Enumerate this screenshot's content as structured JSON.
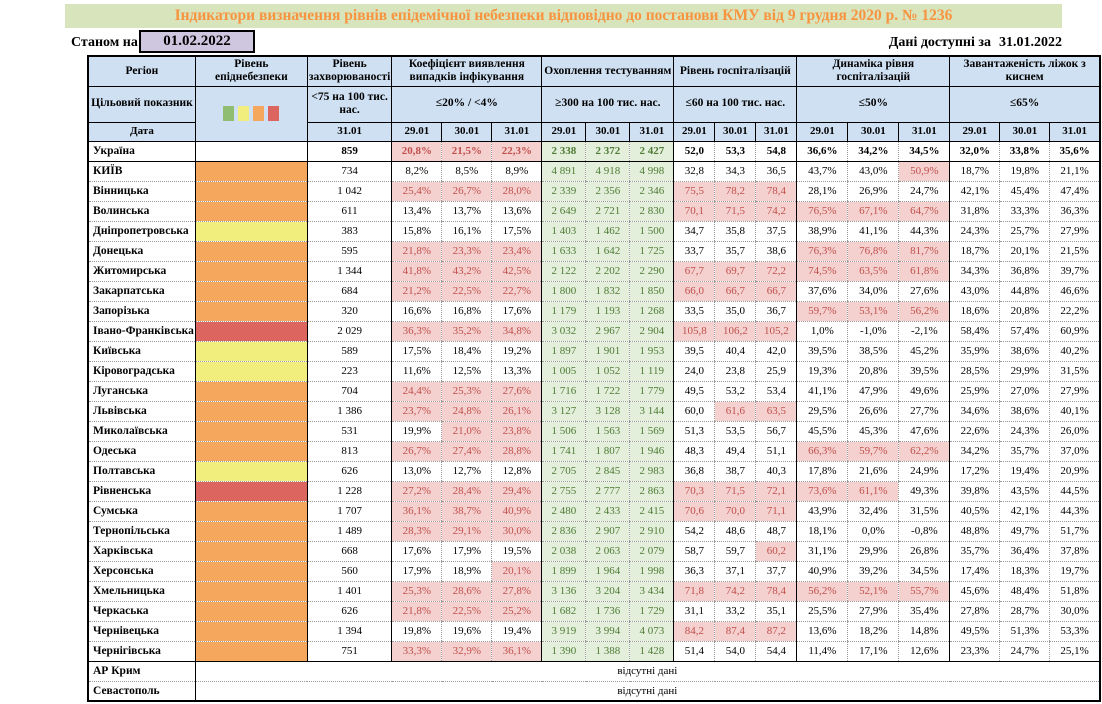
{
  "title": "Індикатори визначення рівнів епідемічної небезпеки відповідно до постанови КМУ від 9 грудня 2020 р. № 1236",
  "as_of_label": "Станом на",
  "as_of_date": "01.02.2022",
  "available_label": "Дані доступні за",
  "available_date": "31.01.2022",
  "no_data_text": "відсутні дані",
  "columns": {
    "region": "Регіон",
    "level": "Рівень епіднебезпеки",
    "incidence": "Рівень захворюваності",
    "coef": "Коефіцієнт виявлення випадків інфікування",
    "testing": "Охоплення тестуванням",
    "hosp": "Рівень госпіталізацій",
    "dynamics": "Динаміка рівня госпіталізацій",
    "beds": "Завантаженість ліжок з киснем"
  },
  "target_label": "Цільовий показник",
  "date_label": "Дата",
  "targets": {
    "incidence": "<75 на 100 тис. нас.",
    "coef": "≤20% / <4%",
    "testing": "≥300 на 100 тис. нас.",
    "hosp": "≤60 на 100 тис. нас.",
    "dynamics": "≤50%",
    "beds": "≤65%"
  },
  "dates": {
    "incidence": "31.01",
    "triple": [
      "29.01",
      "30.01",
      "31.01"
    ]
  },
  "legend_colors": [
    "#8fbe73",
    "#f2ee7e",
    "#f4a75d",
    "#dd6560"
  ],
  "colors": {
    "title_bg": "#d8e4bc",
    "title_text": "#f79440",
    "header_bg": "#cfe0f2",
    "date_box_bg": "#cfc6df",
    "red_bg": "#f4d0ce",
    "red_text": "#c0504d",
    "green_bg": "#e3efda",
    "green_text": "#4e7b35",
    "level_orange": "#f4a75d",
    "level_yellow": "#f2ee7e",
    "level_red": "#dd6560"
  },
  "rows": [
    {
      "name": "Україна",
      "bold": true,
      "solid_bottom": true,
      "level": "none",
      "incidence": "859",
      "coef": [
        "20,8%",
        "21,5%",
        "22,3%"
      ],
      "coef_red": [
        1,
        1,
        1
      ],
      "testing": [
        "2 338",
        "2 372",
        "2 427"
      ],
      "hosp": [
        "52,0",
        "53,3",
        "54,8"
      ],
      "hosp_red": [
        0,
        0,
        0
      ],
      "dyn": [
        "36,6%",
        "34,2%",
        "34,5%"
      ],
      "dyn_red": [
        0,
        0,
        0
      ],
      "beds": [
        "32,0%",
        "33,8%",
        "35,6%"
      ]
    },
    {
      "name": "КИЇВ",
      "level": "orange",
      "incidence": "734",
      "coef": [
        "8,2%",
        "8,5%",
        "8,9%"
      ],
      "coef_red": [
        0,
        0,
        0
      ],
      "testing": [
        "4 891",
        "4 918",
        "4 998"
      ],
      "hosp": [
        "32,8",
        "34,3",
        "36,5"
      ],
      "hosp_red": [
        0,
        0,
        0
      ],
      "dyn": [
        "43,7%",
        "43,0%",
        "50,9%"
      ],
      "dyn_red": [
        0,
        0,
        1
      ],
      "beds": [
        "18,7%",
        "19,8%",
        "21,1%"
      ]
    },
    {
      "name": "Вінницька",
      "level": "orange",
      "incidence": "1 042",
      "coef": [
        "25,4%",
        "26,7%",
        "28,0%"
      ],
      "coef_red": [
        1,
        1,
        1
      ],
      "testing": [
        "2 339",
        "2 356",
        "2 346"
      ],
      "hosp": [
        "75,5",
        "78,2",
        "78,4"
      ],
      "hosp_red": [
        1,
        1,
        1
      ],
      "dyn": [
        "28,1%",
        "26,9%",
        "24,7%"
      ],
      "dyn_red": [
        0,
        0,
        0
      ],
      "beds": [
        "42,1%",
        "45,4%",
        "47,4%"
      ]
    },
    {
      "name": "Волинська",
      "level": "orange",
      "incidence": "611",
      "coef": [
        "13,4%",
        "13,7%",
        "13,6%"
      ],
      "coef_red": [
        0,
        0,
        0
      ],
      "testing": [
        "2 649",
        "2 721",
        "2 830"
      ],
      "hosp": [
        "70,1",
        "71,5",
        "74,2"
      ],
      "hosp_red": [
        1,
        1,
        1
      ],
      "dyn": [
        "76,5%",
        "67,1%",
        "64,7%"
      ],
      "dyn_red": [
        1,
        1,
        1
      ],
      "beds": [
        "31,8%",
        "33,3%",
        "36,3%"
      ]
    },
    {
      "name": "Дніпропетровська",
      "level": "yellow",
      "incidence": "383",
      "coef": [
        "15,8%",
        "16,1%",
        "17,5%"
      ],
      "coef_red": [
        0,
        0,
        0
      ],
      "testing": [
        "1 403",
        "1 462",
        "1 500"
      ],
      "hosp": [
        "34,7",
        "35,8",
        "37,5"
      ],
      "hosp_red": [
        0,
        0,
        0
      ],
      "dyn": [
        "38,9%",
        "41,1%",
        "44,3%"
      ],
      "dyn_red": [
        0,
        0,
        0
      ],
      "beds": [
        "24,3%",
        "25,7%",
        "27,9%"
      ]
    },
    {
      "name": "Донецька",
      "level": "orange",
      "incidence": "595",
      "coef": [
        "21,8%",
        "23,3%",
        "23,4%"
      ],
      "coef_red": [
        1,
        1,
        1
      ],
      "testing": [
        "1 633",
        "1 642",
        "1 725"
      ],
      "hosp": [
        "33,7",
        "35,7",
        "38,6"
      ],
      "hosp_red": [
        0,
        0,
        0
      ],
      "dyn": [
        "76,3%",
        "76,8%",
        "81,7%"
      ],
      "dyn_red": [
        1,
        1,
        1
      ],
      "beds": [
        "18,7%",
        "20,1%",
        "21,5%"
      ]
    },
    {
      "name": "Житомирська",
      "level": "orange",
      "incidence": "1 344",
      "coef": [
        "41,8%",
        "43,2%",
        "42,5%"
      ],
      "coef_red": [
        1,
        1,
        1
      ],
      "testing": [
        "2 122",
        "2 202",
        "2 290"
      ],
      "hosp": [
        "67,7",
        "69,7",
        "72,2"
      ],
      "hosp_red": [
        1,
        1,
        1
      ],
      "dyn": [
        "74,5%",
        "63,5%",
        "61,8%"
      ],
      "dyn_red": [
        1,
        1,
        1
      ],
      "beds": [
        "34,3%",
        "36,8%",
        "39,7%"
      ]
    },
    {
      "name": "Закарпатська",
      "level": "orange",
      "incidence": "684",
      "coef": [
        "21,2%",
        "22,5%",
        "22,7%"
      ],
      "coef_red": [
        1,
        1,
        1
      ],
      "testing": [
        "1 800",
        "1 832",
        "1 850"
      ],
      "hosp": [
        "66,0",
        "66,7",
        "66,7"
      ],
      "hosp_red": [
        1,
        1,
        1
      ],
      "dyn": [
        "37,6%",
        "34,0%",
        "27,6%"
      ],
      "dyn_red": [
        0,
        0,
        0
      ],
      "beds": [
        "43,0%",
        "44,8%",
        "46,6%"
      ]
    },
    {
      "name": "Запорізька",
      "level": "orange",
      "incidence": "320",
      "coef": [
        "16,6%",
        "16,8%",
        "17,6%"
      ],
      "coef_red": [
        0,
        0,
        0
      ],
      "testing": [
        "1 179",
        "1 193",
        "1 268"
      ],
      "hosp": [
        "33,5",
        "35,0",
        "36,7"
      ],
      "hosp_red": [
        0,
        0,
        0
      ],
      "dyn": [
        "59,7%",
        "53,1%",
        "56,2%"
      ],
      "dyn_red": [
        1,
        1,
        1
      ],
      "beds": [
        "18,6%",
        "20,8%",
        "22,2%"
      ]
    },
    {
      "name": "Івано-Франківська",
      "level": "red",
      "incidence": "2 029",
      "coef": [
        "36,3%",
        "35,2%",
        "34,8%"
      ],
      "coef_red": [
        1,
        1,
        1
      ],
      "testing": [
        "3 032",
        "2 967",
        "2 904"
      ],
      "hosp": [
        "105,8",
        "106,2",
        "105,2"
      ],
      "hosp_red": [
        1,
        1,
        1
      ],
      "dyn": [
        "1,0%",
        "-1,0%",
        "-2,1%"
      ],
      "dyn_red": [
        0,
        0,
        0
      ],
      "beds": [
        "58,4%",
        "57,4%",
        "60,9%"
      ]
    },
    {
      "name": "Київська",
      "level": "yellow",
      "incidence": "589",
      "coef": [
        "17,5%",
        "18,4%",
        "19,2%"
      ],
      "coef_red": [
        0,
        0,
        0
      ],
      "testing": [
        "1 897",
        "1 901",
        "1 953"
      ],
      "hosp": [
        "39,5",
        "40,4",
        "42,0"
      ],
      "hosp_red": [
        0,
        0,
        0
      ],
      "dyn": [
        "39,5%",
        "38,5%",
        "45,2%"
      ],
      "dyn_red": [
        0,
        0,
        0
      ],
      "beds": [
        "35,9%",
        "38,6%",
        "40,2%"
      ]
    },
    {
      "name": "Кіровоградська",
      "level": "yellow",
      "incidence": "223",
      "coef": [
        "11,6%",
        "12,5%",
        "13,3%"
      ],
      "coef_red": [
        0,
        0,
        0
      ],
      "testing": [
        "1 005",
        "1 052",
        "1 119"
      ],
      "hosp": [
        "24,0",
        "23,8",
        "25,9"
      ],
      "hosp_red": [
        0,
        0,
        0
      ],
      "dyn": [
        "19,3%",
        "20,8%",
        "39,5%"
      ],
      "dyn_red": [
        0,
        0,
        0
      ],
      "beds": [
        "28,5%",
        "29,9%",
        "31,5%"
      ]
    },
    {
      "name": "Луганська",
      "level": "orange",
      "incidence": "704",
      "coef": [
        "24,4%",
        "25,3%",
        "27,6%"
      ],
      "coef_red": [
        1,
        1,
        1
      ],
      "testing": [
        "1 716",
        "1 722",
        "1 779"
      ],
      "hosp": [
        "49,5",
        "53,2",
        "53,4"
      ],
      "hosp_red": [
        0,
        0,
        0
      ],
      "dyn": [
        "41,1%",
        "47,9%",
        "49,6%"
      ],
      "dyn_red": [
        0,
        0,
        0
      ],
      "beds": [
        "25,9%",
        "27,0%",
        "27,9%"
      ]
    },
    {
      "name": "Львівська",
      "level": "orange",
      "incidence": "1 386",
      "coef": [
        "23,7%",
        "24,8%",
        "26,1%"
      ],
      "coef_red": [
        1,
        1,
        1
      ],
      "testing": [
        "3 127",
        "3 128",
        "3 144"
      ],
      "hosp": [
        "60,0",
        "61,6",
        "63,5"
      ],
      "hosp_red": [
        0,
        1,
        1
      ],
      "dyn": [
        "29,5%",
        "26,6%",
        "27,7%"
      ],
      "dyn_red": [
        0,
        0,
        0
      ],
      "beds": [
        "34,6%",
        "38,6%",
        "40,1%"
      ]
    },
    {
      "name": "Миколаївська",
      "level": "orange",
      "incidence": "531",
      "coef": [
        "19,9%",
        "21,0%",
        "23,8%"
      ],
      "coef_red": [
        0,
        1,
        1
      ],
      "testing": [
        "1 506",
        "1 563",
        "1 569"
      ],
      "hosp": [
        "51,3",
        "53,5",
        "56,7"
      ],
      "hosp_red": [
        0,
        0,
        0
      ],
      "dyn": [
        "45,5%",
        "45,3%",
        "47,6%"
      ],
      "dyn_red": [
        0,
        0,
        0
      ],
      "beds": [
        "22,6%",
        "24,3%",
        "26,0%"
      ]
    },
    {
      "name": "Одеська",
      "level": "orange",
      "incidence": "813",
      "coef": [
        "26,7%",
        "27,4%",
        "28,8%"
      ],
      "coef_red": [
        1,
        1,
        1
      ],
      "testing": [
        "1 741",
        "1 807",
        "1 946"
      ],
      "hosp": [
        "48,3",
        "49,4",
        "51,1"
      ],
      "hosp_red": [
        0,
        0,
        0
      ],
      "dyn": [
        "66,3%",
        "59,7%",
        "62,2%"
      ],
      "dyn_red": [
        1,
        1,
        1
      ],
      "beds": [
        "34,2%",
        "35,7%",
        "37,0%"
      ]
    },
    {
      "name": "Полтавська",
      "level": "yellow",
      "incidence": "626",
      "coef": [
        "13,0%",
        "12,7%",
        "12,8%"
      ],
      "coef_red": [
        0,
        0,
        0
      ],
      "testing": [
        "2 705",
        "2 845",
        "2 983"
      ],
      "hosp": [
        "36,8",
        "38,7",
        "40,3"
      ],
      "hosp_red": [
        0,
        0,
        0
      ],
      "dyn": [
        "17,8%",
        "21,6%",
        "24,9%"
      ],
      "dyn_red": [
        0,
        0,
        0
      ],
      "beds": [
        "17,2%",
        "19,4%",
        "20,9%"
      ]
    },
    {
      "name": "Рівненська",
      "level": "red",
      "incidence": "1 228",
      "coef": [
        "27,2%",
        "28,4%",
        "29,4%"
      ],
      "coef_red": [
        1,
        1,
        1
      ],
      "testing": [
        "2 755",
        "2 777",
        "2 863"
      ],
      "hosp": [
        "70,3",
        "71,5",
        "72,1"
      ],
      "hosp_red": [
        1,
        1,
        1
      ],
      "dyn": [
        "73,6%",
        "61,1%",
        "49,3%"
      ],
      "dyn_red": [
        1,
        1,
        0
      ],
      "beds": [
        "39,8%",
        "43,5%",
        "44,5%"
      ]
    },
    {
      "name": "Сумська",
      "level": "orange",
      "incidence": "1 707",
      "coef": [
        "36,1%",
        "38,7%",
        "40,9%"
      ],
      "coef_red": [
        1,
        1,
        1
      ],
      "testing": [
        "2 480",
        "2 433",
        "2 415"
      ],
      "hosp": [
        "70,6",
        "70,0",
        "71,1"
      ],
      "hosp_red": [
        1,
        1,
        1
      ],
      "dyn": [
        "43,9%",
        "32,4%",
        "31,5%"
      ],
      "dyn_red": [
        0,
        0,
        0
      ],
      "beds": [
        "40,5%",
        "42,1%",
        "44,3%"
      ]
    },
    {
      "name": "Тернопільська",
      "level": "orange",
      "incidence": "1 489",
      "coef": [
        "28,3%",
        "29,1%",
        "30,0%"
      ],
      "coef_red": [
        1,
        1,
        1
      ],
      "testing": [
        "2 836",
        "2 907",
        "2 910"
      ],
      "hosp": [
        "54,2",
        "48,6",
        "48,7"
      ],
      "hosp_red": [
        0,
        0,
        0
      ],
      "dyn": [
        "18,1%",
        "0,0%",
        "-0,8%"
      ],
      "dyn_red": [
        0,
        0,
        0
      ],
      "beds": [
        "48,8%",
        "49,7%",
        "51,7%"
      ]
    },
    {
      "name": "Харківська",
      "level": "orange",
      "incidence": "668",
      "coef": [
        "17,6%",
        "17,9%",
        "19,5%"
      ],
      "coef_red": [
        0,
        0,
        0
      ],
      "testing": [
        "2 038",
        "2 063",
        "2 079"
      ],
      "hosp": [
        "58,7",
        "59,7",
        "60,2"
      ],
      "hosp_red": [
        0,
        0,
        1
      ],
      "dyn": [
        "31,1%",
        "29,9%",
        "26,8%"
      ],
      "dyn_red": [
        0,
        0,
        0
      ],
      "beds": [
        "35,7%",
        "36,4%",
        "37,8%"
      ]
    },
    {
      "name": "Херсонська",
      "level": "orange",
      "incidence": "560",
      "coef": [
        "17,9%",
        "18,9%",
        "20,1%"
      ],
      "coef_red": [
        0,
        0,
        1
      ],
      "testing": [
        "1 899",
        "1 964",
        "1 998"
      ],
      "hosp": [
        "36,3",
        "37,1",
        "37,7"
      ],
      "hosp_red": [
        0,
        0,
        0
      ],
      "dyn": [
        "40,9%",
        "39,2%",
        "34,5%"
      ],
      "dyn_red": [
        0,
        0,
        0
      ],
      "beds": [
        "17,4%",
        "18,3%",
        "19,7%"
      ]
    },
    {
      "name": "Хмельницька",
      "level": "orange",
      "incidence": "1 401",
      "coef": [
        "25,3%",
        "28,6%",
        "27,8%"
      ],
      "coef_red": [
        1,
        1,
        1
      ],
      "testing": [
        "3 136",
        "3 204",
        "3 434"
      ],
      "hosp": [
        "71,8",
        "74,2",
        "78,4"
      ],
      "hosp_red": [
        1,
        1,
        1
      ],
      "dyn": [
        "56,2%",
        "52,1%",
        "55,7%"
      ],
      "dyn_red": [
        1,
        1,
        1
      ],
      "beds": [
        "45,6%",
        "48,4%",
        "51,8%"
      ]
    },
    {
      "name": "Черкаська",
      "level": "orange",
      "incidence": "626",
      "coef": [
        "21,8%",
        "22,5%",
        "25,2%"
      ],
      "coef_red": [
        1,
        1,
        1
      ],
      "testing": [
        "1 682",
        "1 736",
        "1 729"
      ],
      "hosp": [
        "31,1",
        "33,2",
        "35,1"
      ],
      "hosp_red": [
        0,
        0,
        0
      ],
      "dyn": [
        "25,5%",
        "27,9%",
        "35,4%"
      ],
      "dyn_red": [
        0,
        0,
        0
      ],
      "beds": [
        "27,8%",
        "28,7%",
        "30,0%"
      ]
    },
    {
      "name": "Чернівецька",
      "level": "orange",
      "incidence": "1 394",
      "coef": [
        "19,8%",
        "19,6%",
        "19,4%"
      ],
      "coef_red": [
        0,
        0,
        0
      ],
      "testing": [
        "3 919",
        "3 994",
        "4 073"
      ],
      "hosp": [
        "84,2",
        "87,4",
        "87,2"
      ],
      "hosp_red": [
        1,
        1,
        1
      ],
      "dyn": [
        "13,6%",
        "18,2%",
        "14,8%"
      ],
      "dyn_red": [
        0,
        0,
        0
      ],
      "beds": [
        "49,5%",
        "51,3%",
        "53,3%"
      ]
    },
    {
      "name": "Чернігівська",
      "level": "orange",
      "solid_bottom": true,
      "incidence": "751",
      "coef": [
        "33,3%",
        "32,9%",
        "36,1%"
      ],
      "coef_red": [
        1,
        1,
        1
      ],
      "testing": [
        "1 390",
        "1 388",
        "1 428"
      ],
      "hosp": [
        "51,4",
        "54,0",
        "54,4"
      ],
      "hosp_red": [
        0,
        0,
        0
      ],
      "dyn": [
        "11,4%",
        "17,1%",
        "12,6%"
      ],
      "dyn_red": [
        0,
        0,
        0
      ],
      "beds": [
        "23,3%",
        "24,7%",
        "25,1%"
      ]
    },
    {
      "name": "АР Крим",
      "no_data": true
    },
    {
      "name": "Севастополь",
      "no_data": true
    }
  ]
}
